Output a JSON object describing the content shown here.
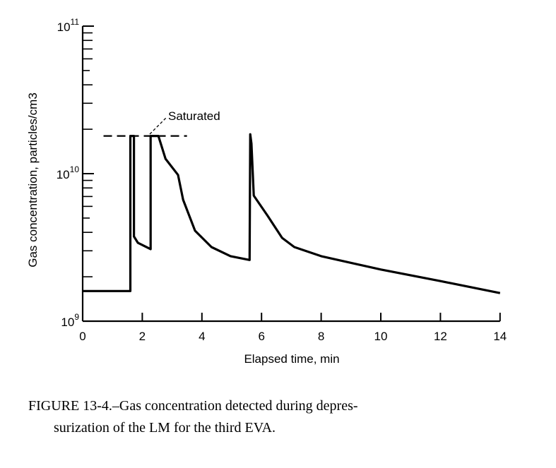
{
  "chart_data": {
    "type": "line",
    "title": "",
    "xlabel": "Elapsed time, min",
    "ylabel": "Gas concentration, particles/cm3",
    "xlim": [
      0,
      14
    ],
    "ylim": [
      1000000000.0,
      100000000000.0
    ],
    "yscale": "log",
    "x_ticks": [
      "0",
      "2",
      "4",
      "6",
      "8",
      "10",
      "12",
      "14"
    ],
    "y_ticks": [
      {
        "base": "10",
        "exp": "9"
      },
      {
        "base": "10",
        "exp": "10"
      },
      {
        "base": "10",
        "exp": "11"
      }
    ],
    "grid": false,
    "series": [
      {
        "name": "Gas concentration",
        "x": [
          0,
          1.6,
          1.6,
          1.72,
          1.72,
          1.85,
          2.28,
          2.28,
          2.54,
          2.78,
          3.2,
          3.37,
          3.77,
          4.32,
          4.96,
          5.6,
          5.62,
          5.66,
          5.74,
          6.2,
          6.69,
          7.1,
          8,
          10,
          12,
          14
        ],
        "y": [
          1600000000.0,
          1600000000.0,
          18000000000.0,
          18000000000.0,
          3750000000.0,
          3400000000.0,
          3080000000.0,
          18000000000.0,
          18000000000.0,
          12600000000.0,
          9800000000.0,
          6650000000.0,
          4100000000.0,
          3180000000.0,
          2760000000.0,
          2600000000.0,
          18500000000.0,
          16000000000.0,
          7100000000.0,
          5200000000.0,
          3670000000.0,
          3180000000.0,
          2760000000.0,
          2240000000.0,
          1870000000.0,
          1550000000.0
        ]
      }
    ],
    "saturation_line": {
      "value": 18000000000.0,
      "x_range": [
        0.7,
        3.5
      ],
      "style": "dashed"
    },
    "annotations": [
      {
        "text": "Saturated"
      }
    ]
  },
  "caption": {
    "line1": "FIGURE 13-4.–Gas concentration detected during depres-",
    "line2": "surization of the LM for the third EVA."
  }
}
